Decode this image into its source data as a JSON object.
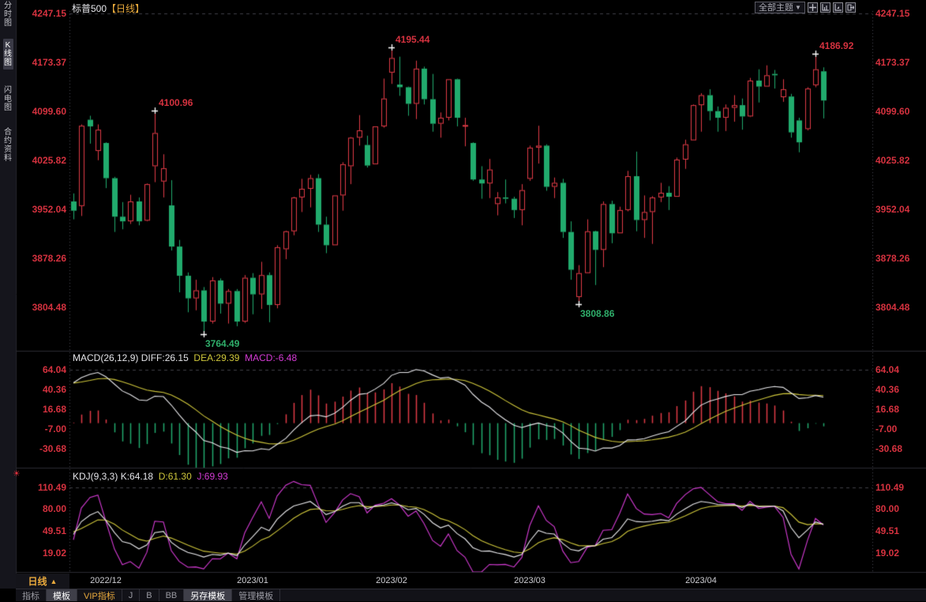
{
  "window": {
    "symbol": "标普500",
    "period": "【日线】"
  },
  "sidebar": {
    "items": [
      {
        "label": "分时图",
        "active": false
      },
      {
        "label": "K线图",
        "active": true
      },
      {
        "label": "闪电图",
        "active": false
      },
      {
        "label": "合约资料",
        "active": false
      }
    ]
  },
  "toolbar": {
    "theme_dropdown": "全部主题",
    "theme_arrow": "▼",
    "icons": [
      "crosshair-icon",
      "chart-left-axis-icon",
      "chart-right-axis-icon",
      "exit-panel-icon"
    ]
  },
  "main_chart": {
    "y_labels": [
      "4247.15",
      "4173.37",
      "4099.60",
      "4025.82",
      "3952.04",
      "3878.26",
      "3804.48"
    ]
  },
  "macd_panel": {
    "header": {
      "name": "MACD(26,12,9)",
      "diff": "DIFF:26.15",
      "dea": "DEA:29.39",
      "macd": "MACD:-6.48"
    },
    "y_labels": [
      "64.04",
      "40.36",
      "16.68",
      "-7.00",
      "-30.68"
    ]
  },
  "kdj_panel": {
    "header": {
      "name": "KDJ(9,3,3)",
      "k": "K:64.18",
      "d": "D:61.30",
      "j": "J:69.93"
    },
    "y_labels": [
      "110.49",
      "80.00",
      "49.51",
      "19.02"
    ]
  },
  "x_axis": {
    "period_label": "日线",
    "period_arrow": "▲",
    "date_labels": [
      {
        "text": "2022/12",
        "candle_index": 4
      },
      {
        "text": "2023/01",
        "candle_index": 22
      },
      {
        "text": "2023/02",
        "candle_index": 39
      },
      {
        "text": "2023/03",
        "candle_index": 56
      },
      {
        "text": "2023/04",
        "candle_index": 77
      }
    ]
  },
  "bottom_tabs": {
    "tabs": [
      {
        "label": "指标",
        "style": "plain"
      },
      {
        "label": "模板",
        "style": "selected"
      },
      {
        "label": "VIP指标",
        "style": "vip"
      },
      {
        "label": "J",
        "style": "plain"
      },
      {
        "label": "B",
        "style": "plain"
      },
      {
        "label": "BB",
        "style": "plain"
      },
      {
        "label": "另存模板",
        "style": "selected"
      },
      {
        "label": "管理模板",
        "style": "plain"
      }
    ]
  },
  "colors": {
    "up": "#e23b47",
    "down": "#21ab6d",
    "axis_text": "#d5323f",
    "diff_line": "#e9e9ec",
    "dea_line": "#cfc73b",
    "j_line": "#d53bd5",
    "gold": "#e8a93c",
    "annotation_high": "#d5323f",
    "annotation_low": "#2fae6a"
  },
  "chart_data": {
    "type": "candlestick",
    "title": "标普500 日线",
    "panels": [
      {
        "name": "price",
        "y_ticks": [
          4247.15,
          4173.37,
          4099.6,
          4025.82,
          3952.04,
          3878.26,
          3804.48
        ]
      },
      {
        "name": "macd",
        "indicator": "MACD(26,12,9)",
        "values": {
          "diff": 26.15,
          "dea": 29.39,
          "macd": -6.48
        },
        "y_ticks": [
          64.04,
          40.36,
          16.68,
          -7.0,
          -30.68
        ]
      },
      {
        "name": "kdj",
        "indicator": "KDJ(9,3,3)",
        "values": {
          "k": 64.18,
          "d": 61.3,
          "j": 69.93
        },
        "y_ticks": [
          110.49,
          80.0,
          49.51,
          19.02
        ]
      }
    ],
    "x_ticks": [
      {
        "label": "2022/12",
        "candle_index": 4
      },
      {
        "label": "2023/01",
        "candle_index": 22
      },
      {
        "label": "2023/02",
        "candle_index": 39
      },
      {
        "label": "2023/03",
        "candle_index": 56
      },
      {
        "label": "2023/04",
        "candle_index": 77
      }
    ],
    "annotations": [
      {
        "text": "4100.96",
        "candle_index": 10,
        "price": 4100.96,
        "side": "high"
      },
      {
        "text": "3764.49",
        "candle_index": 16,
        "price": 3764.49,
        "side": "low"
      },
      {
        "text": "4195.44",
        "candle_index": 39,
        "price": 4195.44,
        "side": "high"
      },
      {
        "text": "3808.86",
        "candle_index": 62,
        "price": 3808.86,
        "side": "low"
      },
      {
        "text": "4186.92",
        "candle_index": 91,
        "price": 4186.92,
        "side": "high"
      }
    ],
    "candles": [
      [
        3964,
        3976,
        3937,
        3950
      ],
      [
        3957,
        4080,
        3942,
        4078
      ],
      [
        4087,
        4093,
        4051,
        4077
      ],
      [
        4040,
        4080,
        4026,
        4072
      ],
      [
        4052,
        4053,
        3984,
        3999
      ],
      [
        3999,
        4001,
        3918,
        3941
      ],
      [
        3941,
        3963,
        3922,
        3934
      ],
      [
        3934,
        3974,
        3930,
        3964
      ],
      [
        3964,
        3970,
        3928,
        3934
      ],
      [
        3935,
        3991,
        3934,
        3990
      ],
      [
        4017,
        4100.96,
        3993,
        4067
      ],
      [
        3994,
        4035,
        3970,
        4014
      ],
      [
        3958,
        3996,
        3890,
        3896
      ],
      [
        3896,
        3906,
        3827,
        3852
      ],
      [
        3852,
        3857,
        3797,
        3818
      ],
      [
        3818,
        3846,
        3800,
        3830
      ],
      [
        3830,
        3835,
        3764.49,
        3783
      ],
      [
        3783,
        3850,
        3780,
        3845
      ],
      [
        3845,
        3848,
        3795,
        3810
      ],
      [
        3810,
        3832,
        3780,
        3829
      ],
      [
        3829,
        3832,
        3776,
        3783
      ],
      [
        3783,
        3853,
        3781,
        3849
      ],
      [
        3849,
        3856,
        3794,
        3824
      ],
      [
        3824,
        3873,
        3802,
        3853
      ],
      [
        3853,
        3857,
        3782,
        3808
      ],
      [
        3808,
        3898,
        3803,
        3895
      ],
      [
        3892,
        3920,
        3877,
        3919
      ],
      [
        3919,
        3971,
        3913,
        3970
      ],
      [
        3970,
        3998,
        3948,
        3983
      ],
      [
        3983,
        4004,
        3955,
        3999
      ],
      [
        3999,
        4005,
        3918,
        3929
      ],
      [
        3929,
        3941,
        3886,
        3898
      ],
      [
        3898,
        3973,
        3898,
        3973
      ],
      [
        3973,
        4023,
        3950,
        4020
      ],
      [
        4017,
        4061,
        3990,
        4060
      ],
      [
        4060,
        4094,
        4048,
        4071
      ],
      [
        4049,
        4063,
        4015,
        4018
      ],
      [
        4020,
        4077,
        4020,
        4077
      ],
      [
        4077,
        4149,
        4075,
        4119
      ],
      [
        4158,
        4195.44,
        4141,
        4180
      ],
      [
        4140,
        4182,
        4123,
        4136
      ],
      [
        4136,
        4137,
        4093,
        4111
      ],
      [
        4111,
        4176,
        4088,
        4164
      ],
      [
        4164,
        4167,
        4110,
        4118
      ],
      [
        4118,
        4156,
        4069,
        4081
      ],
      [
        4081,
        4098,
        4060,
        4090
      ],
      [
        4090,
        4148,
        4086,
        4148
      ],
      [
        4148,
        4149,
        4077,
        4090
      ],
      [
        4077,
        4090,
        4047,
        4079
      ],
      [
        4052,
        4053,
        3995,
        3997
      ],
      [
        3997,
        4017,
        3968,
        3991
      ],
      [
        3991,
        4028,
        3969,
        4012
      ],
      [
        3960,
        3978,
        3943,
        3970
      ],
      [
        3970,
        3997,
        3961,
        3968
      ],
      [
        3968,
        3971,
        3939,
        3951
      ],
      [
        3951,
        3990,
        3928,
        3981
      ],
      [
        3998,
        4048,
        3995,
        4045
      ],
      [
        4045,
        4078,
        4021,
        4048
      ],
      [
        4048,
        4050,
        3980,
        3986
      ],
      [
        3986,
        4000,
        3969,
        3992
      ],
      [
        3992,
        3998,
        3909,
        3918
      ],
      [
        3918,
        3934,
        3846,
        3861
      ],
      [
        3820,
        3868,
        3808.86,
        3856
      ],
      [
        3856,
        3937,
        3856,
        3919
      ],
      [
        3919,
        3920,
        3838,
        3891
      ],
      [
        3891,
        3964,
        3865,
        3960
      ],
      [
        3960,
        3965,
        3901,
        3916
      ],
      [
        3916,
        3956,
        3916,
        3951
      ],
      [
        3951,
        4010,
        3949,
        4002
      ],
      [
        4002,
        4039,
        3919,
        3936
      ],
      [
        3936,
        3973,
        3909,
        3948
      ],
      [
        3948,
        3972,
        3900,
        3970
      ],
      [
        3970,
        3992,
        3963,
        3977
      ],
      [
        3977,
        3987,
        3951,
        3971
      ],
      [
        3971,
        4030,
        3971,
        4027
      ],
      [
        4027,
        4057,
        4013,
        4050
      ],
      [
        4056,
        4110,
        4056,
        4109
      ],
      [
        4109,
        4127,
        4069,
        4124
      ],
      [
        4124,
        4133,
        4086,
        4100
      ],
      [
        4100,
        4107,
        4069,
        4090
      ],
      [
        4090,
        4110,
        4070,
        4105
      ],
      [
        4105,
        4124,
        4084,
        4109
      ],
      [
        4109,
        4119,
        4072,
        4092
      ],
      [
        4092,
        4150,
        4091,
        4146
      ],
      [
        4146,
        4163,
        4113,
        4137
      ],
      [
        4137,
        4169,
        4137,
        4154
      ],
      [
        4156,
        4162,
        4134,
        4154
      ],
      [
        4121,
        4148,
        4114,
        4133
      ],
      [
        4122,
        4126,
        4060,
        4068
      ],
      [
        4086,
        4090,
        4038,
        4053
      ],
      [
        4073,
        4136,
        4071,
        4134
      ],
      [
        4139,
        4186.92,
        4136,
        4163
      ],
      [
        4160,
        4166,
        4089,
        4116
      ]
    ]
  }
}
